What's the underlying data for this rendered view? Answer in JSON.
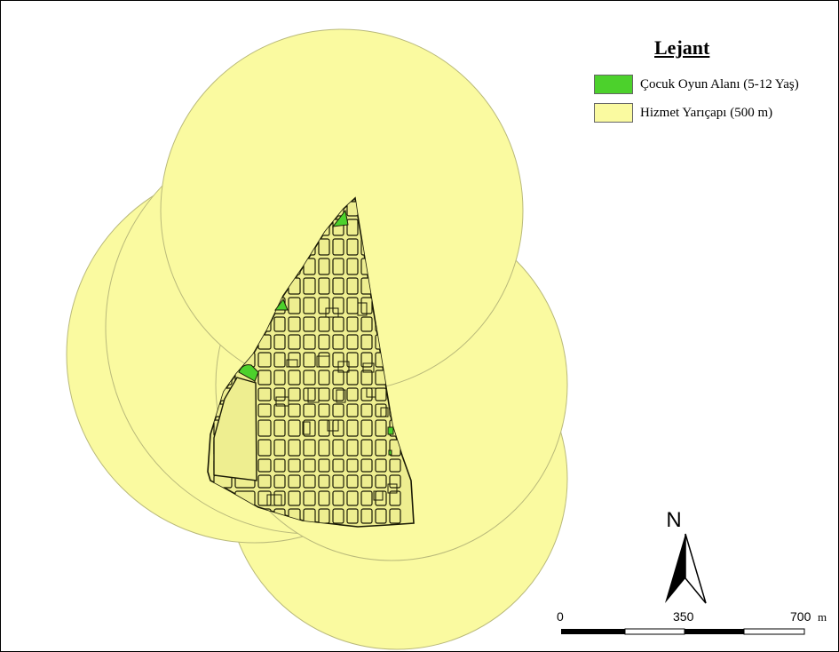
{
  "legend": {
    "title": "Lejant",
    "items": [
      {
        "label": "Çocuk Oyun Alanı (5-12 Yaş)",
        "color": "#4cd12c"
      },
      {
        "label": "Hizmet Yarıçapı (500 m)",
        "color": "#fafaa0"
      }
    ]
  },
  "north_arrow": {
    "label": "N"
  },
  "scale_bar": {
    "ticks": [
      "0",
      "350",
      "700"
    ],
    "unit": "m"
  },
  "colors": {
    "buffer_fill": "#fafaa0",
    "buffer_stroke": "#b9b97a",
    "street_fill": "#eeee90",
    "block_outline": "#1a1a05",
    "playground": "#4cd12c"
  }
}
